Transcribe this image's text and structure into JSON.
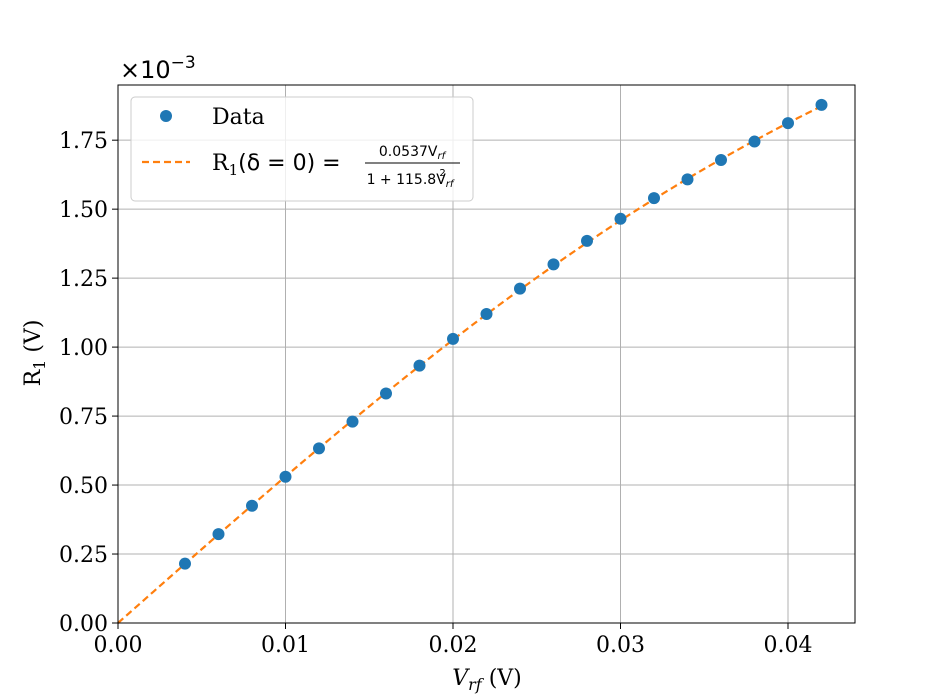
{
  "chart_data": {
    "type": "scatter",
    "title": "",
    "xlabel": "V_rf (V)",
    "ylabel": "R_1 (V)",
    "xlim": [
      0,
      0.044
    ],
    "ylim": [
      0,
      1.95
    ],
    "y_scale_label": "×10^-3",
    "x_ticks": [
      0.0,
      0.01,
      0.02,
      0.03,
      0.04
    ],
    "x_tick_labels": [
      "0.00",
      "0.01",
      "0.02",
      "0.03",
      "0.04"
    ],
    "y_ticks": [
      0.0,
      0.25,
      0.5,
      0.75,
      1.0,
      1.25,
      1.5,
      1.75
    ],
    "y_tick_labels": [
      "0.00",
      "0.25",
      "0.50",
      "0.75",
      "1.00",
      "1.25",
      "1.50",
      "1.75"
    ],
    "grid": true,
    "legend_position": "top-left",
    "series": [
      {
        "name": "Data",
        "kind": "scatter",
        "color": "#1f77b4",
        "x": [
          0.004,
          0.006,
          0.008,
          0.01,
          0.012,
          0.014,
          0.016,
          0.018,
          0.02,
          0.022,
          0.024,
          0.026,
          0.028,
          0.03,
          0.032,
          0.034,
          0.036,
          0.038,
          0.04,
          0.042
        ],
        "y": [
          0.215,
          0.322,
          0.425,
          0.53,
          0.633,
          0.73,
          0.832,
          0.933,
          1.03,
          1.12,
          1.212,
          1.3,
          1.385,
          1.465,
          1.54,
          1.608,
          1.678,
          1.745,
          1.812,
          1.878
        ]
      },
      {
        "name": "R_1(δ = 0) = 0.0537 V_rf / (1 + 115.8 V_rf²)",
        "kind": "fit-line",
        "color": "#ff7f0e",
        "a": 0.0537,
        "b": 115.8,
        "x_range": [
          0.0,
          0.042
        ]
      }
    ],
    "legend": {
      "data_label": "Data",
      "fit_prefix": "R",
      "fit_sub": "1",
      "fit_mid": "(δ = 0) =",
      "fit_numerator": "0.0537V",
      "fit_num_sub": "rf",
      "fit_denominator": "1 + 115.8V",
      "fit_den_sub": "rf",
      "fit_den_sup": "2"
    },
    "axis_text": {
      "x_main": "V",
      "x_sub": "rf",
      "x_unit": " (V)",
      "y_main": "R",
      "y_sub": "1",
      "y_unit": " (V)",
      "sci_prefix": "×10",
      "sci_exp": "−3"
    }
  }
}
